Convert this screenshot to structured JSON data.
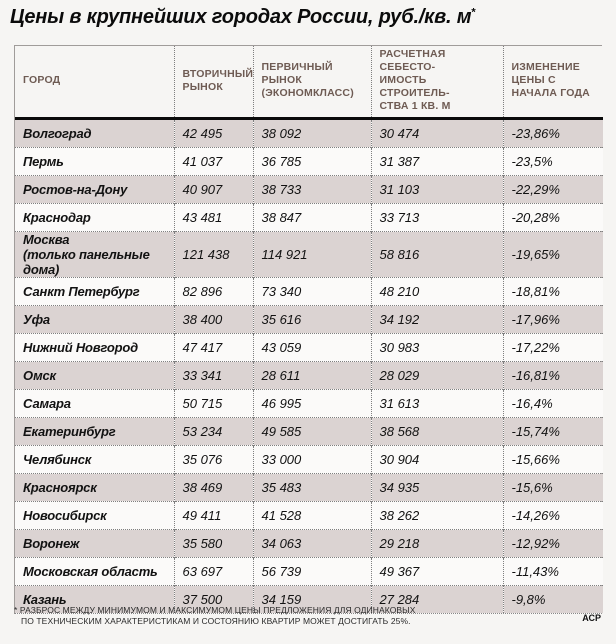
{
  "page": {
    "title": "Цены в крупнейших городах России, руб./кв. м",
    "title_superscript": "*",
    "footnote": "* РАЗБРОС МЕЖДУ МИНИМУМОМ И МАКСИМУМОМ ЦЕНЫ ПРЕДЛОЖЕНИЯ ДЛЯ ОДИНАКОВЫХ\nПО ТЕХНИЧЕСКИМ ХАРАКТЕРИСТИКАМ И СОСТОЯНИЮ КВАРТИР МОЖЕТ ДОСТИГАТЬ 25%.",
    "source": "АСР"
  },
  "colors": {
    "page_background": "#f6f5f3",
    "shaded_row": "#dbd3d2",
    "plain_row": "#fbfaf9",
    "header_text": "#6e5b53",
    "thick_rule": "#0a0a0a",
    "dotted_rule": "#7f7f7f"
  },
  "chart_data": {
    "type": "table",
    "title": "Цены в крупнейших городах России, руб./кв. м*",
    "columns": [
      "ГОРОД",
      "ВТОРИЧНЫЙ РЫНОК",
      "ПЕРВИЧНЫЙ РЫНОК (ЭКОНОМКЛАСС)",
      "РАСЧЕТНАЯ СЕБЕСТОИМОСТЬ СТРОИТЕЛЬСТВА 1 КВ. М",
      "ИЗМЕНЕНИЕ ЦЕНЫ С НАЧАЛА ГОДА"
    ],
    "columns_display": [
      "ГОРОД",
      "ВТОРИЧНЫЙ\nРЫНОК",
      "ПЕРВИЧНЫЙ РЫНОК\n(ЭКОНОМКЛАСС)",
      "РАСЧЕТНАЯ СЕБЕСТО-\nИМОСТЬ СТРОИТЕЛЬ-\nСТВА 1 КВ. М",
      "ИЗМЕНЕНИЕ\nЦЕНЫ С\nНАЧАЛА ГОДА"
    ],
    "rows": [
      {
        "city": "Волгоград",
        "secondary": "42 495",
        "primary": "38 092",
        "cost": "30 474",
        "change": "-23,86%"
      },
      {
        "city": "Пермь",
        "secondary": "41 037",
        "primary": "36 785",
        "cost": "31 387",
        "change": "-23,5%"
      },
      {
        "city": "Ростов-на-Дону",
        "secondary": "40 907",
        "primary": "38 733",
        "cost": "31 103",
        "change": "-22,29%"
      },
      {
        "city": "Краснодар",
        "secondary": "43 481",
        "primary": "38 847",
        "cost": "33 713",
        "change": "-20,28%"
      },
      {
        "city": "Москва (только панельные дома)",
        "city_display": "Москва\n(только панельные дома)",
        "secondary": "121 438",
        "primary": "114 921",
        "cost": "58 816",
        "change": "-19,65%"
      },
      {
        "city": "Санкт Петербург",
        "secondary": "82 896",
        "primary": "73 340",
        "cost": "48 210",
        "change": "-18,81%"
      },
      {
        "city": "Уфа",
        "secondary": "38 400",
        "primary": "35 616",
        "cost": "34 192",
        "change": "-17,96%"
      },
      {
        "city": "Нижний Новгород",
        "secondary": "47 417",
        "primary": "43 059",
        "cost": "30 983",
        "change": "-17,22%"
      },
      {
        "city": "Омск",
        "secondary": "33 341",
        "primary": "28 611",
        "cost": "28 029",
        "change": "-16,81%"
      },
      {
        "city": "Самара",
        "secondary": "50 715",
        "primary": "46 995",
        "cost": "31 613",
        "change": "-16,4%"
      },
      {
        "city": "Екатеринбург",
        "secondary": "53 234",
        "primary": "49 585",
        "cost": "38 568",
        "change": "-15,74%"
      },
      {
        "city": "Челябинск",
        "secondary": "35 076",
        "primary": "33 000",
        "cost": "30 904",
        "change": "-15,66%"
      },
      {
        "city": "Красноярск",
        "secondary": "38 469",
        "primary": "35 483",
        "cost": "34 935",
        "change": "-15,6%"
      },
      {
        "city": "Новосибирск",
        "secondary": "49 411",
        "primary": "41 528",
        "cost": "38 262",
        "change": "-14,26%"
      },
      {
        "city": "Воронеж",
        "secondary": "35 580",
        "primary": "34 063",
        "cost": "29 218",
        "change": "-12,92%"
      },
      {
        "city": "Московская область",
        "secondary": "63 697",
        "primary": "56 739",
        "cost": "49 367",
        "change": "-11,43%"
      },
      {
        "city": "Казань",
        "secondary": "37 500",
        "primary": "34 159",
        "cost": "27 284",
        "change": "-9,8%"
      }
    ]
  }
}
